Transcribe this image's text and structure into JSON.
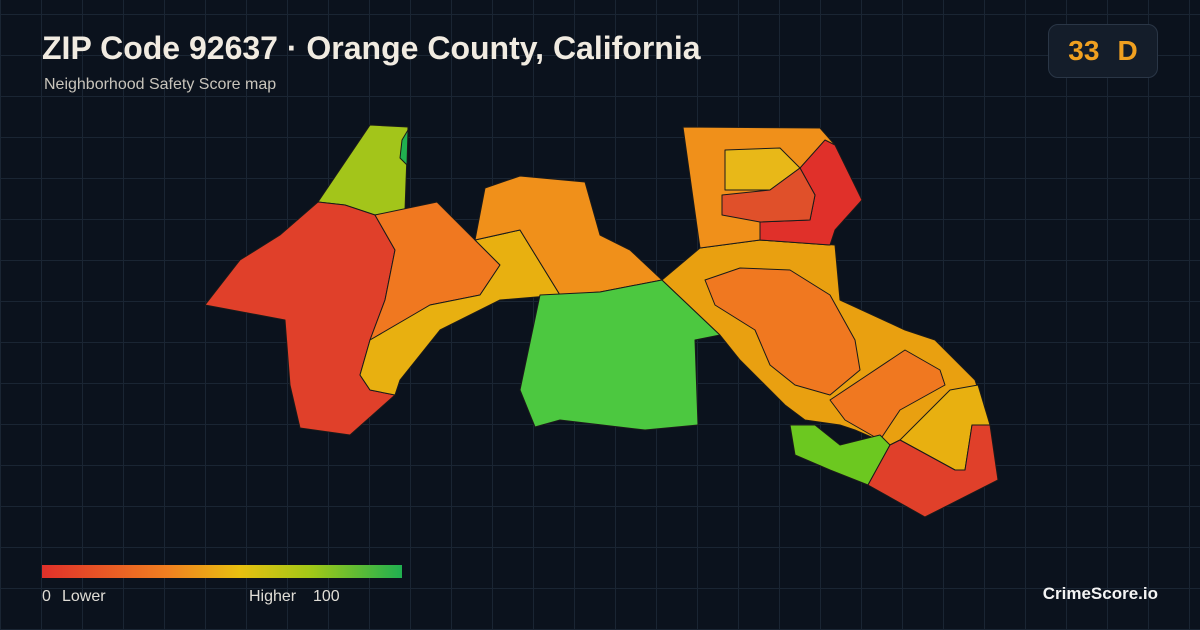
{
  "header": {
    "title": "ZIP Code 92637 · Orange County, California",
    "subtitle": "Neighborhood Safety Score map"
  },
  "score": {
    "value": 33,
    "grade": "D"
  },
  "legend": {
    "min": 0,
    "min_label": "Lower",
    "max_label": "Higher",
    "max": 100
  },
  "brand": "CrimeScore.io"
}
